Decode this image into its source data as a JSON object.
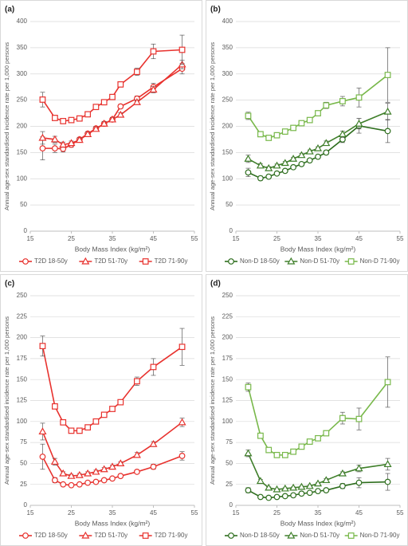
{
  "chart_data": [
    {
      "type": "line",
      "title": "(a)",
      "x_label": "Body Mass Index (kg/m²)",
      "y_label": "Annual age-sex standardised incidence rate per 1,000 persons",
      "x": [
        18,
        21,
        23,
        25,
        27,
        29,
        31,
        33,
        35,
        37,
        41,
        45,
        52
      ],
      "xlim": [
        15,
        55
      ],
      "xticks": [
        15,
        25,
        35,
        45,
        55
      ],
      "ylim": [
        0,
        400
      ],
      "yticks": [
        0,
        50,
        100,
        150,
        200,
        250,
        300,
        350,
        400
      ],
      "grid": true,
      "legend": "bottom",
      "series": [
        {
          "name": "T2D 18-50y",
          "color": "#e8322e",
          "marker": "circle",
          "values": [
            158,
            158,
            157,
            165,
            175,
            186,
            196,
            205,
            213,
            238,
            253,
            275,
            310
          ],
          "errors": [
            22,
            8,
            6,
            5,
            4,
            4,
            4,
            4,
            4,
            4,
            5,
            7,
            10
          ]
        },
        {
          "name": "T2D 51-70y",
          "color": "#e8322e",
          "marker": "triangle",
          "values": [
            178,
            175,
            165,
            168,
            174,
            185,
            195,
            205,
            213,
            222,
            246,
            270,
            318
          ],
          "errors": [
            12,
            6,
            5,
            4,
            4,
            4,
            4,
            4,
            4,
            4,
            4,
            6,
            8
          ]
        },
        {
          "name": "T2D 71-90y",
          "color": "#e8322e",
          "marker": "square",
          "values": [
            251,
            216,
            210,
            212,
            215,
            223,
            237,
            246,
            256,
            280,
            304,
            343,
            346
          ],
          "errors": [
            14,
            5,
            4,
            4,
            4,
            4,
            4,
            4,
            4,
            5,
            7,
            14,
            28
          ]
        }
      ]
    },
    {
      "type": "line",
      "title": "(b)",
      "x_label": "Body Mass Index (kg/m²)",
      "y_label": "Annual age-sex standardised incidence rate per 1,000 persons",
      "x": [
        18,
        21,
        23,
        25,
        27,
        29,
        31,
        33,
        35,
        37,
        41,
        45,
        52
      ],
      "xlim": [
        15,
        55
      ],
      "xticks": [
        15,
        25,
        35,
        45,
        55
      ],
      "ylim": [
        0,
        400
      ],
      "yticks": [
        0,
        50,
        100,
        150,
        200,
        250,
        300,
        350,
        400
      ],
      "grid": true,
      "legend": "bottom",
      "series": [
        {
          "name": "Non-D 18-50y",
          "color": "#2e6e1e",
          "marker": "circle",
          "values": [
            112,
            101,
            104,
            110,
            115,
            122,
            128,
            135,
            142,
            150,
            175,
            201,
            191
          ],
          "errors": [
            8,
            4,
            3,
            3,
            3,
            3,
            3,
            3,
            3,
            4,
            6,
            14,
            22
          ]
        },
        {
          "name": "Non-D 51-70y",
          "color": "#3f7f2a",
          "marker": "triangle",
          "values": [
            138,
            125,
            120,
            125,
            130,
            138,
            145,
            152,
            158,
            168,
            185,
            205,
            228
          ],
          "errors": [
            7,
            4,
            3,
            3,
            3,
            3,
            3,
            3,
            3,
            4,
            6,
            10,
            16
          ]
        },
        {
          "name": "Non-D 71-90y",
          "color": "#78b84a",
          "marker": "square",
          "values": [
            220,
            185,
            178,
            183,
            190,
            197,
            206,
            212,
            225,
            240,
            248,
            255,
            298
          ],
          "errors": [
            7,
            4,
            4,
            3,
            3,
            3,
            4,
            4,
            5,
            6,
            9,
            18,
            52
          ]
        }
      ]
    },
    {
      "type": "line",
      "title": "(c)",
      "x_label": "Body Mass Index (kg/m²)",
      "y_label": "Annual age-sex standardised incidence rate per 1,000 persons",
      "x": [
        18,
        21,
        23,
        25,
        27,
        29,
        31,
        33,
        35,
        37,
        41,
        45,
        52
      ],
      "xlim": [
        15,
        55
      ],
      "xticks": [
        15,
        25,
        35,
        45,
        55
      ],
      "ylim": [
        0,
        250
      ],
      "yticks": [
        0,
        25,
        50,
        75,
        100,
        125,
        150,
        175,
        200,
        225,
        250
      ],
      "grid": true,
      "legend": "bottom",
      "series": [
        {
          "name": "T2D 18-50y",
          "color": "#e8322e",
          "marker": "circle",
          "values": [
            58,
            30,
            25,
            24,
            25,
            27,
            28,
            30,
            32,
            35,
            40,
            46,
            59
          ],
          "errors": [
            15,
            3,
            2,
            1,
            1,
            1,
            1,
            1,
            1,
            2,
            2,
            3,
            5
          ]
        },
        {
          "name": "T2D 51-70y",
          "color": "#e8322e",
          "marker": "triangle",
          "values": [
            88,
            52,
            38,
            35,
            36,
            38,
            40,
            43,
            46,
            50,
            60,
            73,
            99
          ],
          "errors": [
            10,
            4,
            2,
            2,
            2,
            2,
            2,
            2,
            2,
            2,
            3,
            3,
            5
          ]
        },
        {
          "name": "T2D 71-90y",
          "color": "#e8322e",
          "marker": "square",
          "values": [
            190,
            118,
            99,
            89,
            89,
            93,
            100,
            108,
            115,
            123,
            148,
            165,
            189
          ],
          "errors": [
            12,
            3,
            2,
            2,
            2,
            2,
            2,
            2,
            2,
            3,
            5,
            10,
            22
          ]
        }
      ]
    },
    {
      "type": "line",
      "title": "(d)",
      "x_label": "Body Mass Index (kg/m²)",
      "y_label": "Annual age-sex standardised incidence rate per 1,000 persons",
      "x": [
        18,
        21,
        23,
        25,
        27,
        29,
        31,
        33,
        35,
        37,
        41,
        45,
        52
      ],
      "xlim": [
        15,
        55
      ],
      "xticks": [
        15,
        25,
        35,
        45,
        55
      ],
      "ylim": [
        0,
        250
      ],
      "yticks": [
        0,
        25,
        50,
        75,
        100,
        125,
        150,
        175,
        200,
        225,
        250
      ],
      "grid": true,
      "legend": "bottom",
      "series": [
        {
          "name": "Non-D 18-50y",
          "color": "#2e6e1e",
          "marker": "circle",
          "values": [
            18,
            10,
            9,
            10,
            11,
            12,
            14,
            15,
            17,
            18,
            23,
            27,
            28
          ],
          "errors": [
            3,
            1,
            1,
            1,
            1,
            1,
            1,
            1,
            1,
            1,
            3,
            6,
            10
          ]
        },
        {
          "name": "Non-D 51-70y",
          "color": "#3f7f2a",
          "marker": "triangle",
          "values": [
            62,
            29,
            21,
            19,
            20,
            21,
            22,
            23,
            26,
            30,
            38,
            44,
            49
          ],
          "errors": [
            4,
            2,
            1,
            1,
            1,
            1,
            1,
            1,
            1,
            2,
            2,
            4,
            7
          ]
        },
        {
          "name": "Non-D 71-90y",
          "color": "#78b84a",
          "marker": "square",
          "values": [
            141,
            83,
            66,
            60,
            60,
            64,
            70,
            76,
            80,
            86,
            104,
            103,
            147
          ],
          "errors": [
            5,
            3,
            2,
            2,
            2,
            2,
            2,
            3,
            3,
            3,
            7,
            13,
            30
          ]
        }
      ]
    }
  ]
}
